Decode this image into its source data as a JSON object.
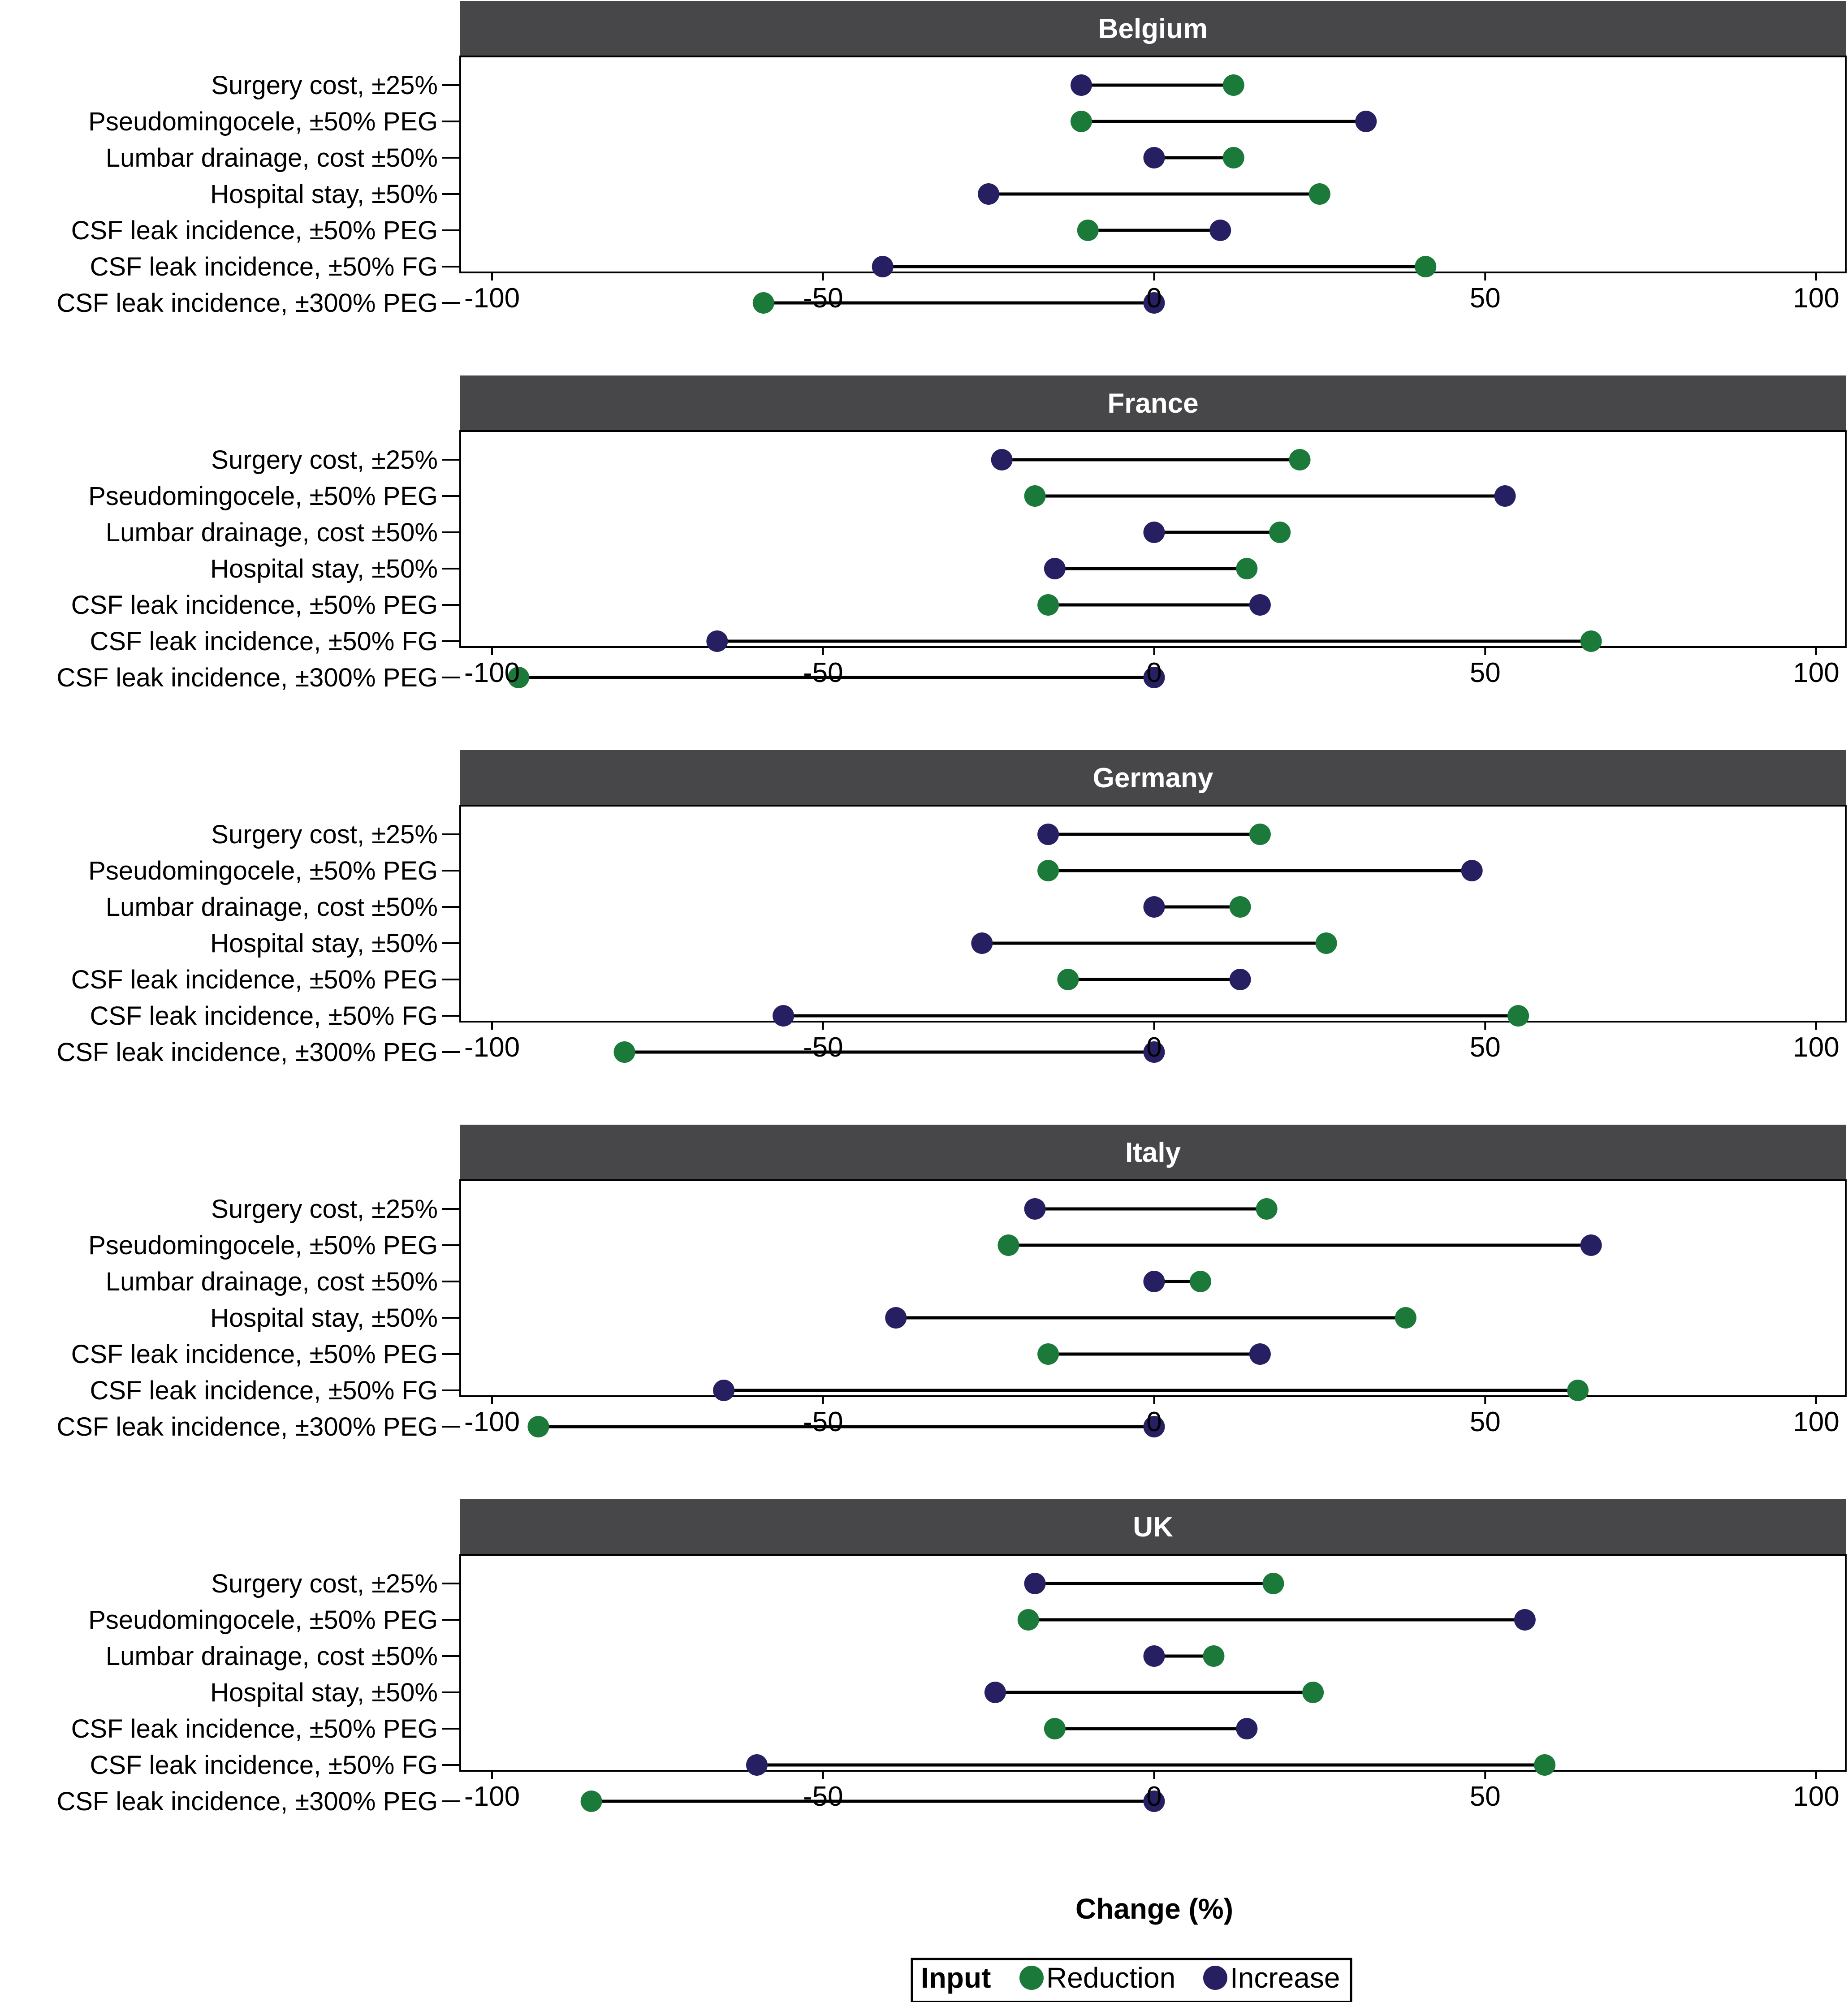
{
  "chart_data": {
    "type": "dumbbell",
    "xlabel": "Change (%)",
    "xlim": [
      -100,
      100
    ],
    "xticks": [
      -100,
      -50,
      0,
      50,
      100
    ],
    "categories": [
      "Surgery cost, ±25%",
      "Pseudomingocele, ±50% PEG",
      "Lumbar drainage, cost ±50%",
      "Hospital stay, ±50%",
      "CSF leak incidence, ±50% PEG",
      "CSF leak incidence, ±50% FG",
      "CSF leak incidence, ±300% PEG"
    ],
    "legend": {
      "title": "Input",
      "placement": "bottom-center",
      "items": [
        {
          "name": "Reduction",
          "color": "#1b7a3a"
        },
        {
          "name": "Increase",
          "color": "#261f62"
        }
      ]
    },
    "panels": [
      {
        "title": "Belgium",
        "reduction": [
          12,
          -11,
          12,
          25,
          -10,
          41,
          -59
        ],
        "increase": [
          -11,
          32,
          0,
          -25,
          10,
          -41,
          0
        ]
      },
      {
        "title": "France",
        "reduction": [
          22,
          -18,
          19,
          14,
          -16,
          66,
          -96
        ],
        "increase": [
          -23,
          53,
          0,
          -15,
          16,
          -66,
          0
        ]
      },
      {
        "title": "Germany",
        "reduction": [
          16,
          -16,
          13,
          26,
          -13,
          55,
          -80
        ],
        "increase": [
          -16,
          48,
          0,
          -26,
          13,
          -56,
          0
        ]
      },
      {
        "title": "Italy",
        "reduction": [
          17,
          -22,
          7,
          38,
          -16,
          64,
          -93
        ],
        "increase": [
          -18,
          66,
          0,
          -39,
          16,
          -65,
          0
        ]
      },
      {
        "title": "UK",
        "reduction": [
          18,
          -19,
          9,
          24,
          -15,
          59,
          -85
        ],
        "increase": [
          -18,
          56,
          0,
          -24,
          14,
          -60,
          0
        ]
      }
    ]
  }
}
